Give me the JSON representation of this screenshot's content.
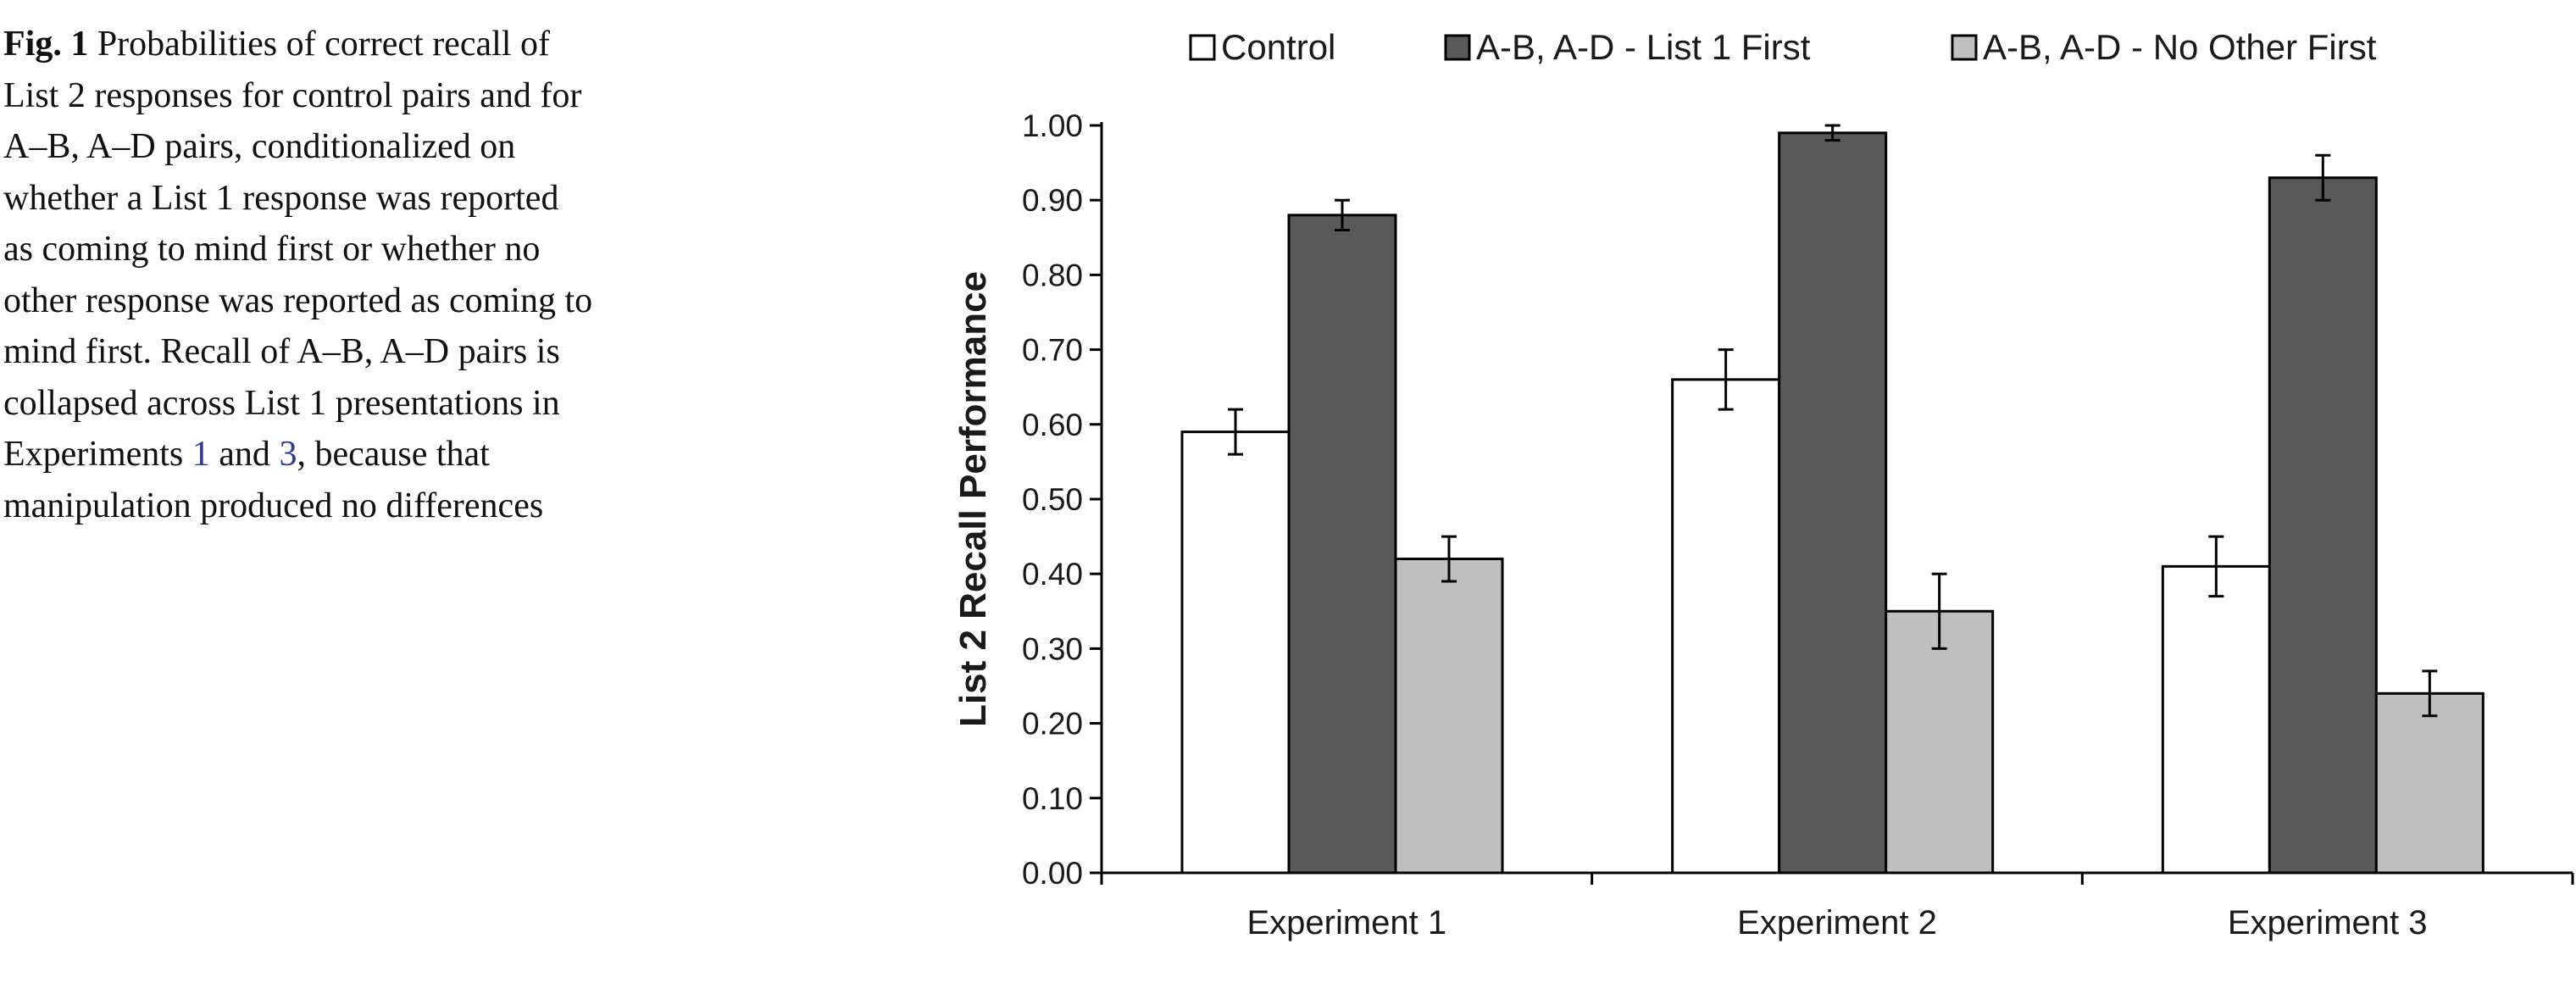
{
  "caption": {
    "label": "Fig. 1",
    "text_part1": " Probabilities of correct recall of List 2 responses for control pairs and for A–B, A–D pairs, conditionalized on whether a List 1 response was reported as coming to mind first or whether no other response was reported as coming to mind first. Recall of A–B, A–D pairs is collapsed across List 1 presentations in Experiments ",
    "ref1": "1",
    "text_part2": " and ",
    "ref2": "3",
    "text_part3": ", because that manipulation produced no differences"
  },
  "chart_data": {
    "type": "bar",
    "categories": [
      "Experiment 1",
      "Experiment 2",
      "Experiment 3"
    ],
    "series": [
      {
        "name": "Control",
        "color": "#ffffff",
        "values": [
          0.59,
          0.66,
          0.41
        ],
        "errors": [
          0.03,
          0.04,
          0.04
        ]
      },
      {
        "name": "A-B, A-D - List 1 First",
        "color": "#595959",
        "values": [
          0.88,
          0.99,
          0.93
        ],
        "errors": [
          0.02,
          0.01,
          0.03
        ]
      },
      {
        "name": "A-B, A-D - No Other First",
        "color": "#bfbfbf",
        "values": [
          0.42,
          0.35,
          0.24
        ],
        "errors": [
          0.03,
          0.05,
          0.03
        ]
      }
    ],
    "ylabel": "List 2 Recall Performance",
    "xlabel": "",
    "ylim": [
      0,
      1.0
    ],
    "yticks": [
      "0.00",
      "0.10",
      "0.20",
      "0.30",
      "0.40",
      "0.50",
      "0.60",
      "0.70",
      "0.80",
      "0.90",
      "1.00"
    ],
    "legend_position": "top",
    "grid": false
  }
}
